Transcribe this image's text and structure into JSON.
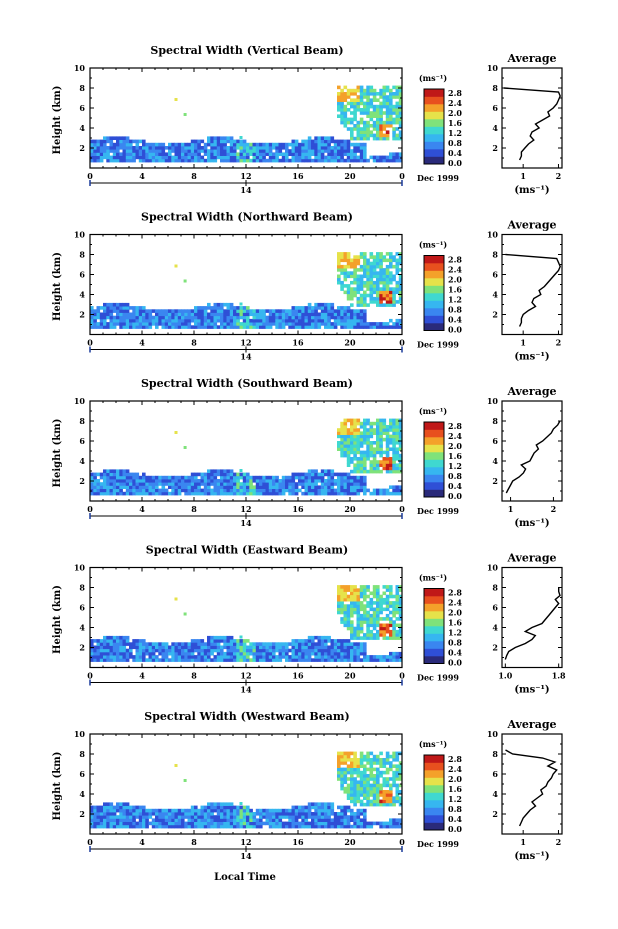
{
  "figure": {
    "xlabel": "Local Time",
    "day_label": "14",
    "date_label": "Dec 1999",
    "ylabel": "Height (km)",
    "avg_title": "Average",
    "units": "(ms⁻¹)",
    "colorbar_ticks": [
      "2.8",
      "2.4",
      "2.0",
      "1.6",
      "1.2",
      "0.8",
      "0.4",
      "0.0"
    ],
    "colors": [
      "#2a2a7a",
      "#2f4fd6",
      "#3a86f0",
      "#36b6f0",
      "#3fd8d0",
      "#7fe27a",
      "#e6e24a",
      "#f4a12a",
      "#e8501e",
      "#c01818"
    ]
  },
  "chart_data": [
    {
      "type": "heatmap",
      "title": "Spectral Width (Vertical Beam)",
      "xlabel": "Local Time",
      "ylabel": "Height (km)",
      "xlim": [
        0,
        24
      ],
      "ylim": [
        0,
        10
      ],
      "x_ticks": [
        "0",
        "4",
        "8",
        "12",
        "16",
        "20",
        "0"
      ],
      "y_ticks": [
        "2",
        "4",
        "6",
        "8",
        "10"
      ],
      "colorbar": {
        "label": "(ms⁻¹)",
        "range": [
          0.0,
          2.8
        ]
      },
      "average_profile": {
        "title": "Average",
        "xlabel": "(ms⁻¹)",
        "x_ticks": [
          "1",
          "2"
        ],
        "xlim": [
          0.4,
          2.1
        ],
        "y_ticks": [
          "2",
          "4",
          "6",
          "8",
          "10"
        ],
        "heights": [
          0.8,
          1.2,
          1.6,
          2.0,
          2.4,
          2.8,
          3.2,
          3.6,
          4.0,
          4.4,
          4.8,
          5.2,
          5.6,
          6.0,
          6.4,
          6.8,
          7.2,
          7.6,
          8.0
        ],
        "values": [
          0.9,
          0.95,
          0.95,
          1.05,
          1.15,
          1.3,
          1.2,
          1.25,
          1.45,
          1.35,
          1.55,
          1.75,
          1.7,
          1.85,
          1.95,
          2.0,
          2.05,
          2.0,
          0.45
        ]
      }
    },
    {
      "type": "heatmap",
      "title": "Spectral Width (Northward Beam)",
      "xlabel": "Local Time",
      "ylabel": "Height (km)",
      "xlim": [
        0,
        24
      ],
      "ylim": [
        0,
        10
      ],
      "x_ticks": [
        "0",
        "4",
        "8",
        "12",
        "16",
        "20",
        "0"
      ],
      "y_ticks": [
        "2",
        "4",
        "6",
        "8",
        "10"
      ],
      "colorbar": {
        "label": "(ms⁻¹)",
        "range": [
          0.0,
          2.8
        ]
      },
      "average_profile": {
        "title": "Average",
        "xlabel": "(ms⁻¹)",
        "x_ticks": [
          "1",
          "2"
        ],
        "xlim": [
          0.4,
          2.1
        ],
        "y_ticks": [
          "2",
          "4",
          "6",
          "8",
          "10"
        ],
        "heights": [
          0.8,
          1.2,
          1.6,
          2.0,
          2.4,
          2.8,
          3.2,
          3.6,
          4.0,
          4.4,
          4.8,
          5.2,
          5.6,
          6.0,
          6.4,
          6.8,
          7.2,
          7.6,
          8.0
        ],
        "values": [
          0.9,
          0.95,
          0.95,
          1.0,
          1.15,
          1.35,
          1.25,
          1.3,
          1.5,
          1.45,
          1.6,
          1.7,
          1.8,
          1.9,
          2.0,
          2.05,
          2.0,
          1.95,
          0.5
        ]
      }
    },
    {
      "type": "heatmap",
      "title": "Spectral Width (Southward Beam)",
      "xlabel": "Local Time",
      "ylabel": "Height (km)",
      "xlim": [
        0,
        24
      ],
      "ylim": [
        0,
        10
      ],
      "x_ticks": [
        "0",
        "4",
        "8",
        "12",
        "16",
        "20",
        "0"
      ],
      "y_ticks": [
        "2",
        "4",
        "6",
        "8",
        "10"
      ],
      "colorbar": {
        "label": "(ms⁻¹)",
        "range": [
          0.0,
          2.8
        ]
      },
      "average_profile": {
        "title": "Average",
        "xlabel": "(ms⁻¹)",
        "x_ticks": [
          "1",
          "2"
        ],
        "xlim": [
          0.8,
          2.2
        ],
        "y_ticks": [
          "2",
          "4",
          "6",
          "8",
          "10"
        ],
        "heights": [
          0.8,
          1.2,
          1.6,
          2.0,
          2.4,
          2.8,
          3.2,
          3.6,
          4.0,
          4.4,
          4.8,
          5.2,
          5.6,
          6.0,
          6.4,
          6.8,
          7.2,
          7.6,
          8.0
        ],
        "values": [
          0.9,
          0.95,
          1.0,
          1.05,
          1.2,
          1.3,
          1.35,
          1.25,
          1.45,
          1.5,
          1.55,
          1.65,
          1.6,
          1.75,
          1.85,
          1.95,
          2.0,
          2.1,
          2.15
        ]
      }
    },
    {
      "type": "heatmap",
      "title": "Spectral Width (Eastward Beam)",
      "xlabel": "Local Time",
      "ylabel": "Height (km)",
      "xlim": [
        0,
        24
      ],
      "ylim": [
        0,
        10
      ],
      "x_ticks": [
        "0",
        "4",
        "8",
        "12",
        "16",
        "20",
        "0"
      ],
      "y_ticks": [
        "2",
        "4",
        "6",
        "8",
        "10"
      ],
      "colorbar": {
        "label": "(ms⁻¹)",
        "range": [
          0.0,
          2.8
        ]
      },
      "average_profile": {
        "title": "Average",
        "xlabel": "(ms⁻¹)",
        "x_ticks": [
          "1.0",
          "1.8"
        ],
        "xlim": [
          0.95,
          1.85
        ],
        "y_ticks": [
          "2",
          "4",
          "6",
          "8",
          "10"
        ],
        "heights": [
          0.8,
          1.2,
          1.6,
          2.0,
          2.4,
          2.8,
          3.2,
          3.6,
          4.0,
          4.4,
          4.8,
          5.2,
          5.6,
          6.0,
          6.4,
          6.8,
          7.2,
          7.6,
          8.0
        ],
        "values": [
          1.0,
          1.02,
          1.05,
          1.15,
          1.3,
          1.4,
          1.45,
          1.3,
          1.4,
          1.55,
          1.6,
          1.65,
          1.7,
          1.75,
          1.8,
          1.75,
          1.82,
          1.8,
          1.8
        ]
      }
    },
    {
      "type": "heatmap",
      "title": "Spectral Width (Westward Beam)",
      "xlabel": "Local Time",
      "ylabel": "Height (km)",
      "xlim": [
        0,
        24
      ],
      "ylim": [
        0,
        10
      ],
      "x_ticks": [
        "0",
        "4",
        "8",
        "12",
        "16",
        "20",
        "0"
      ],
      "y_ticks": [
        "2",
        "4",
        "6",
        "8",
        "10"
      ],
      "colorbar": {
        "label": "(ms⁻¹)",
        "range": [
          0.0,
          2.8
        ]
      },
      "average_profile": {
        "title": "Average",
        "xlabel": "(ms⁻¹)",
        "x_ticks": [
          "1",
          "2"
        ],
        "xlim": [
          0.4,
          2.1
        ],
        "y_ticks": [
          "2",
          "4",
          "6",
          "8",
          "10"
        ],
        "heights": [
          0.8,
          1.2,
          1.6,
          2.0,
          2.4,
          2.8,
          3.2,
          3.6,
          4.0,
          4.4,
          4.8,
          5.2,
          5.6,
          6.0,
          6.4,
          6.8,
          7.2,
          7.6,
          8.0,
          8.4
        ],
        "values": [
          0.9,
          0.95,
          1.0,
          1.1,
          1.2,
          1.35,
          1.25,
          1.4,
          1.55,
          1.5,
          1.65,
          1.7,
          1.8,
          1.85,
          1.95,
          1.7,
          1.9,
          1.55,
          0.7,
          0.5
        ]
      }
    }
  ]
}
